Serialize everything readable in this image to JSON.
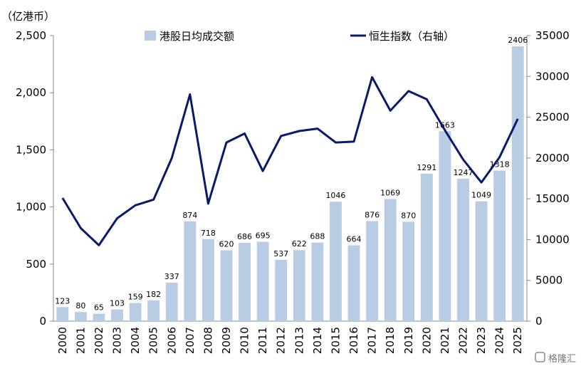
{
  "chart_data": {
    "type": "bar",
    "y_unit_label": "（亿港币）",
    "categories": [
      "2000",
      "2001",
      "2002",
      "2003",
      "2004",
      "2005",
      "2006",
      "2007",
      "2008",
      "2009",
      "2010",
      "2011",
      "2012",
      "2013",
      "2014",
      "2015",
      "2016",
      "2017",
      "2018",
      "2019",
      "2020",
      "2021",
      "2022",
      "2023",
      "2024",
      "2025"
    ],
    "series": [
      {
        "name": "港股日均成交额",
        "type": "bar",
        "axis": "left",
        "color": "#B8CCE4",
        "values": [
          123,
          80,
          65,
          103,
          159,
          182,
          337,
          874,
          718,
          620,
          686,
          695,
          537,
          622,
          688,
          1046,
          664,
          876,
          1069,
          870,
          1291,
          1663,
          1247,
          1049,
          1318,
          2406
        ]
      },
      {
        "name": "恒生指数（右轴）",
        "type": "line",
        "axis": "right",
        "color": "#0A1A6B",
        "values": [
          15100,
          11400,
          9300,
          12600,
          14200,
          14900,
          20000,
          27800,
          14400,
          21900,
          23000,
          18400,
          22700,
          23300,
          23600,
          21900,
          22000,
          29900,
          25800,
          28200,
          27200,
          23400,
          19800,
          17000,
          20100,
          24800
        ]
      }
    ],
    "y_left": {
      "min": 0,
      "max": 2500,
      "ticks": [
        0,
        500,
        1000,
        1500,
        2000,
        2500
      ],
      "tick_labels": [
        "0",
        "500",
        "1,000",
        "1,500",
        "2,000",
        "2,500"
      ]
    },
    "y_right": {
      "min": 0,
      "max": 35000,
      "ticks": [
        0,
        5000,
        10000,
        15000,
        20000,
        25000,
        30000,
        35000
      ],
      "tick_labels": [
        "0",
        "5000",
        "10000",
        "15000",
        "20000",
        "25000",
        "30000",
        "35000"
      ]
    },
    "legend_position": "top-center",
    "grid": false
  },
  "watermark": {
    "text": "格隆汇",
    "icon": "gelonghui-logo-icon"
  }
}
